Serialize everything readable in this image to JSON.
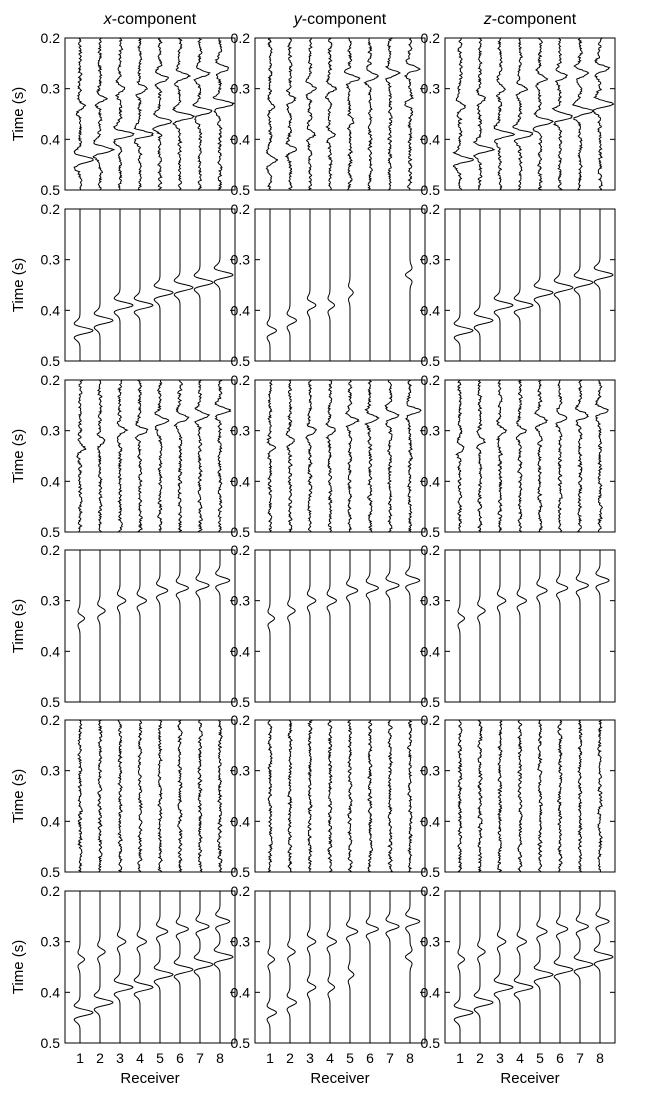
{
  "chart_data": {
    "type": "line",
    "description_layout": "6 rows x 3 columns seismic trace gathers",
    "column_titles": [
      {
        "italic": "x",
        "rest": "-component"
      },
      {
        "italic": "y",
        "rest": "-component"
      },
      {
        "italic": "z",
        "rest": "-component"
      }
    ],
    "ylabel": "Time (s)",
    "xlabel": "Receiver",
    "ylim": [
      0.2,
      0.5
    ],
    "y_ticks": [
      0.2,
      0.3,
      0.4,
      0.5
    ],
    "y_tick_labels": [
      "0.2",
      "0.3",
      "0.4",
      "0.5"
    ],
    "receivers": [
      1,
      2,
      3,
      4,
      5,
      6,
      7,
      8
    ],
    "receiver_labels": [
      "1",
      "2",
      "3",
      "4",
      "5",
      "6",
      "7",
      "8"
    ],
    "event_a_times_s": [
      0.335,
      0.32,
      0.3,
      0.3,
      0.28,
      0.275,
      0.27,
      0.26
    ],
    "event_b_times_s": [
      0.44,
      0.42,
      0.39,
      0.39,
      0.365,
      0.355,
      0.345,
      0.33
    ],
    "panels": [
      {
        "row": 1,
        "col": 1,
        "noise": true,
        "a_amp": [
          0.35,
          0.4,
          0.45,
          0.5,
          0.6,
          0.65,
          0.7,
          0.75
        ],
        "b_amp": [
          1.0,
          1.0,
          1.0,
          1.0,
          1.0,
          1.0,
          1.0,
          1.0
        ]
      },
      {
        "row": 1,
        "col": 2,
        "noise": true,
        "a_amp": [
          0.35,
          0.4,
          0.45,
          0.5,
          0.6,
          0.65,
          0.7,
          0.75
        ],
        "b_amp": [
          0.5,
          0.5,
          0.45,
          0.35,
          0.3,
          0.0,
          0.0,
          -0.35
        ]
      },
      {
        "row": 1,
        "col": 3,
        "noise": true,
        "a_amp": [
          0.35,
          0.4,
          0.45,
          0.5,
          0.55,
          0.6,
          0.65,
          0.7
        ],
        "b_amp": [
          1.0,
          1.0,
          1.0,
          1.0,
          1.0,
          1.0,
          1.0,
          1.0
        ]
      },
      {
        "row": 2,
        "col": 1,
        "noise": false,
        "a_amp": [
          0,
          0,
          0,
          0,
          0,
          0,
          0,
          0
        ],
        "b_amp": [
          1.0,
          1.0,
          1.0,
          1.0,
          1.0,
          1.0,
          1.0,
          1.0
        ]
      },
      {
        "row": 2,
        "col": 2,
        "noise": false,
        "a_amp": [
          0,
          0,
          0,
          0,
          0,
          0,
          0,
          0
        ],
        "b_amp": [
          0.5,
          0.5,
          0.45,
          0.35,
          0.25,
          0.0,
          0.0,
          -0.35
        ]
      },
      {
        "row": 2,
        "col": 3,
        "noise": false,
        "a_amp": [
          0,
          0,
          0,
          0,
          0,
          0,
          0,
          0
        ],
        "b_amp": [
          1.0,
          1.0,
          1.0,
          1.0,
          1.0,
          1.0,
          1.0,
          1.0
        ]
      },
      {
        "row": 3,
        "col": 1,
        "noise": true,
        "a_amp": [
          0.35,
          0.4,
          0.45,
          0.5,
          0.6,
          0.65,
          0.7,
          0.75
        ],
        "b_amp": [
          0,
          0,
          0,
          0,
          0,
          0,
          0,
          0
        ]
      },
      {
        "row": 3,
        "col": 2,
        "noise": true,
        "a_amp": [
          0.35,
          0.4,
          0.45,
          0.5,
          0.6,
          0.65,
          0.7,
          0.75
        ],
        "b_amp": [
          0,
          0,
          0,
          0,
          0,
          0,
          0,
          0
        ]
      },
      {
        "row": 3,
        "col": 3,
        "noise": true,
        "a_amp": [
          0.35,
          0.4,
          0.45,
          0.5,
          0.55,
          0.6,
          0.65,
          0.7
        ],
        "b_amp": [
          0,
          0,
          0,
          0,
          0,
          0,
          0,
          0
        ]
      },
      {
        "row": 4,
        "col": 1,
        "noise": false,
        "a_amp": [
          0.35,
          0.4,
          0.45,
          0.5,
          0.6,
          0.65,
          0.7,
          0.75
        ],
        "b_amp": [
          0,
          0,
          0,
          0,
          0,
          0,
          0,
          0
        ]
      },
      {
        "row": 4,
        "col": 2,
        "noise": false,
        "a_amp": [
          0.35,
          0.4,
          0.45,
          0.5,
          0.6,
          0.65,
          0.7,
          0.75
        ],
        "b_amp": [
          0,
          0,
          0,
          0,
          0,
          0,
          0,
          0
        ]
      },
      {
        "row": 4,
        "col": 3,
        "noise": false,
        "a_amp": [
          0.35,
          0.4,
          0.45,
          0.5,
          0.55,
          0.6,
          0.65,
          0.7
        ],
        "b_amp": [
          0,
          0,
          0,
          0,
          0,
          0,
          0,
          0
        ]
      },
      {
        "row": 5,
        "col": 1,
        "noise": true,
        "a_amp": [
          0,
          0,
          0,
          0,
          0,
          0,
          0,
          0
        ],
        "b_amp": [
          0,
          0,
          0,
          0,
          0,
          0,
          0,
          0
        ]
      },
      {
        "row": 5,
        "col": 2,
        "noise": true,
        "a_amp": [
          0,
          0,
          0,
          0,
          0,
          0,
          0,
          0
        ],
        "b_amp": [
          0,
          0,
          0,
          0,
          0,
          0,
          0,
          0
        ]
      },
      {
        "row": 5,
        "col": 3,
        "noise": true,
        "a_amp": [
          0,
          0,
          0,
          0,
          0,
          0,
          0,
          0
        ],
        "b_amp": [
          0,
          0,
          0,
          0,
          0,
          0,
          0,
          0
        ]
      },
      {
        "row": 6,
        "col": 1,
        "noise": false,
        "a_amp": [
          0.35,
          0.4,
          0.45,
          0.5,
          0.6,
          0.65,
          0.7,
          0.75
        ],
        "b_amp": [
          1.0,
          1.0,
          1.0,
          1.0,
          1.0,
          1.0,
          1.0,
          1.0
        ]
      },
      {
        "row": 6,
        "col": 2,
        "noise": false,
        "a_amp": [
          0.35,
          0.4,
          0.45,
          0.5,
          0.6,
          0.65,
          0.7,
          0.75
        ],
        "b_amp": [
          0.5,
          0.5,
          0.45,
          0.35,
          0.3,
          0.0,
          0.0,
          -0.35
        ]
      },
      {
        "row": 6,
        "col": 3,
        "noise": false,
        "a_amp": [
          0.35,
          0.4,
          0.45,
          0.5,
          0.55,
          0.6,
          0.65,
          0.7
        ],
        "b_amp": [
          1.0,
          1.0,
          1.0,
          1.0,
          1.0,
          1.0,
          1.0,
          1.0
        ]
      }
    ]
  }
}
